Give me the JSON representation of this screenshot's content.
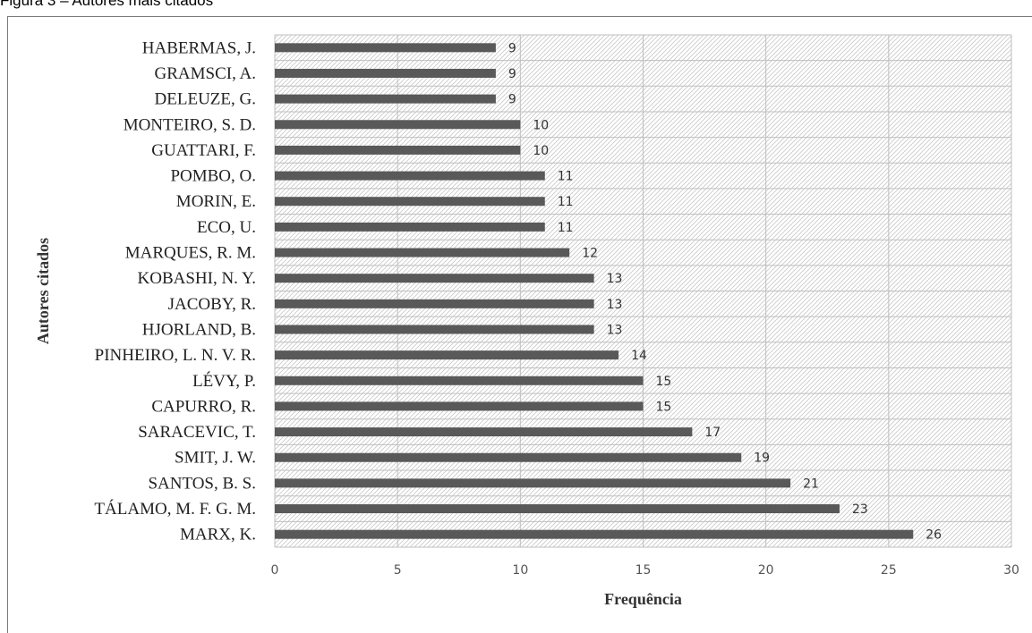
{
  "caption": "Figura 3 – Autores mais citados",
  "chart_data": {
    "type": "bar",
    "orientation": "horizontal",
    "categories": [
      "HABERMAS, J.",
      "GRAMSCI, A.",
      "DELEUZE, G.",
      "MONTEIRO, S. D.",
      "GUATTARI, F.",
      "POMBO, O.",
      "MORIN, E.",
      "ECO, U.",
      "MARQUES, R. M.",
      "KOBASHI, N. Y.",
      "JACOBY, R.",
      "HJORLAND, B.",
      "PINHEIRO, L. N. V. R.",
      "LÉVY, P.",
      "CAPURRO, R.",
      "SARACEVIC, T.",
      "SMIT, J. W.",
      "SANTOS, B. S.",
      "TÁLAMO, M. F. G. M.",
      "MARX, K."
    ],
    "values": [
      9,
      9,
      9,
      10,
      10,
      11,
      11,
      11,
      12,
      13,
      13,
      13,
      14,
      15,
      15,
      17,
      19,
      21,
      23,
      26
    ],
    "xlabel": "Frequência",
    "ylabel": "Autores citados",
    "xlim": [
      0,
      30
    ],
    "xticks": [
      0,
      5,
      10,
      15,
      20,
      25,
      30
    ],
    "data_labels": true,
    "grid": true,
    "colors": {
      "bar": "#595959",
      "hatch": "#c8c8c8",
      "grid": "#bfbfbf"
    }
  }
}
